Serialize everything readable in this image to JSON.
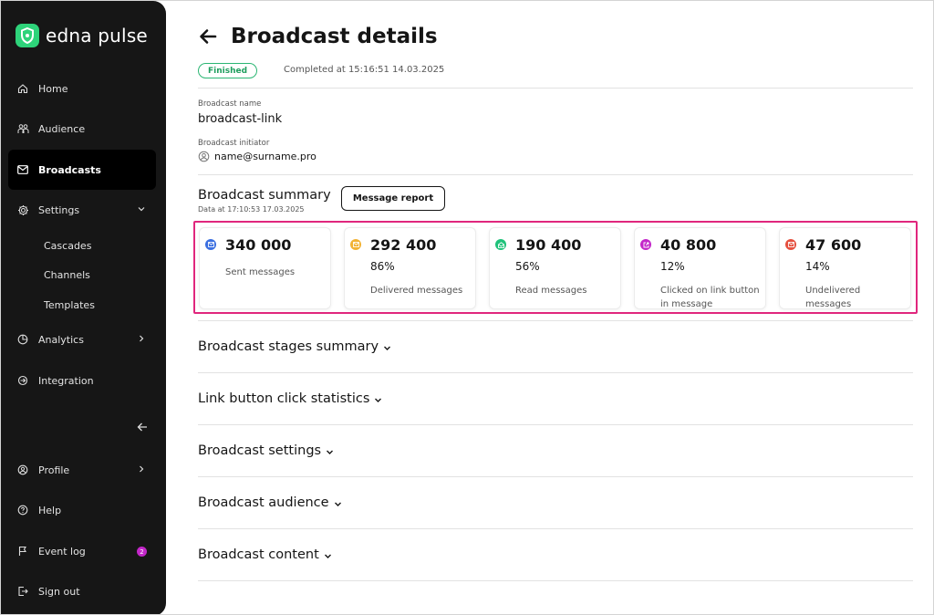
{
  "brand": {
    "name": "edna pulse"
  },
  "sidebar": {
    "items": [
      {
        "label": "Home",
        "icon": "home-icon"
      },
      {
        "label": "Audience",
        "icon": "audience-icon"
      },
      {
        "label": "Broadcasts",
        "icon": "mail-icon",
        "active": true
      },
      {
        "label": "Settings",
        "icon": "gear-icon"
      },
      {
        "label": "Analytics",
        "icon": "pie-chart-icon"
      },
      {
        "label": "Integration",
        "icon": "integration-icon"
      }
    ],
    "sub_items": [
      "Cascades",
      "Channels",
      "Templates"
    ],
    "bottom": [
      {
        "label": "Profile",
        "icon": "user-circle-icon"
      },
      {
        "label": "Help",
        "icon": "help-icon"
      },
      {
        "label": "Event log",
        "icon": "flag-icon",
        "badge": "2"
      },
      {
        "label": "Sign out",
        "icon": "sign-out-icon"
      }
    ]
  },
  "header": {
    "title": "Broadcast details",
    "status": "Finished",
    "completed": "Completed at 15:16:51 14.03.2025"
  },
  "details": {
    "name_label": "Broadcast name",
    "name_value": "broadcast-link",
    "initiator_label": "Broadcast initiator",
    "initiator_value": "name@surname.pro"
  },
  "summary": {
    "title": "Broadcast summary",
    "date": "Data at 17:10:53 17.03.2025",
    "report_button": "Message report",
    "cards": [
      {
        "value": "340 000",
        "percent": "",
        "label": "Sent messages",
        "color": "#3b6fe0",
        "icon": "mail-icon"
      },
      {
        "value": "292 400",
        "percent": "86%",
        "label": "Delivered messages",
        "color": "#f2b233",
        "icon": "mail-icon"
      },
      {
        "value": "190 400",
        "percent": "56%",
        "label": "Read messages",
        "color": "#1fc27a",
        "icon": "mail-open-icon"
      },
      {
        "value": "40 800",
        "percent": "12%",
        "label": "Clicked on link button in message",
        "color": "#c327c9",
        "icon": "external-link-icon"
      },
      {
        "value": "47 600",
        "percent": "14%",
        "label": "Undelivered messages",
        "color": "#e5503f",
        "icon": "mail-x-icon"
      }
    ]
  },
  "sections": [
    "Broadcast stages summary",
    "Link button click statistics",
    "Broadcast settings",
    "Broadcast audience",
    "Broadcast content"
  ],
  "colors": {
    "sidebar_bg": "#161616",
    "brand_green": "#2ed37a",
    "highlight": "#e0267d"
  }
}
